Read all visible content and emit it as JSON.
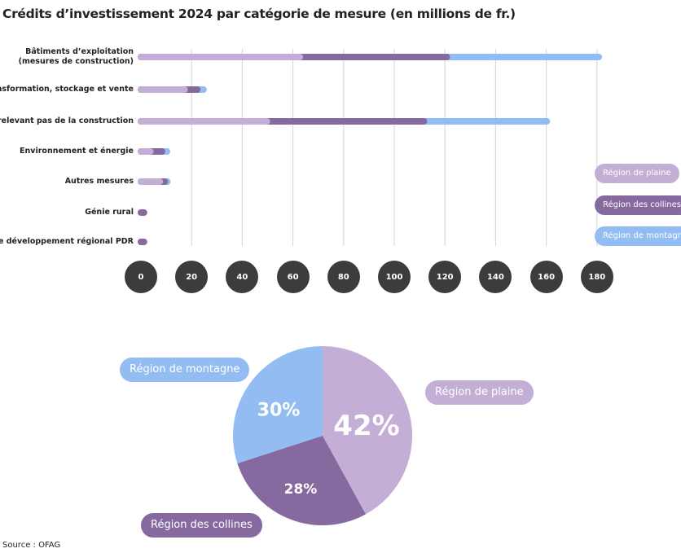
{
  "colors": {
    "plaine": "#c3aed6",
    "collines": "#85699f",
    "montagne": "#93bdf2",
    "tick_bg": "#3c3c3e",
    "grid": "#d4d4d8"
  },
  "chart_data": [
    {
      "type": "bar",
      "orientation": "horizontal",
      "stacked": true,
      "title": "Crédits d’investissement 2024 par catégorie de mesure (en millions de fr.)",
      "categories": [
        "Bâtiments d’exploitation (mesures de construction)",
        "Transformation, stockage et vente",
        "Mesures ne relevant pas de la construction",
        "Environnement et énergie",
        "Autres mesures",
        "Génie rural",
        "Projets de développement régional PDR"
      ],
      "category_lines": [
        [
          "Bâtiments d’exploitation",
          "(mesures de construction)"
        ],
        [
          "Transformation, stockage et vente"
        ],
        [
          "Mesures ne relevant pas de la construction"
        ],
        [
          "Environnement et énergie"
        ],
        [
          "Autres mesures"
        ],
        [
          "Génie rural"
        ],
        [
          "Projets de développement régional PDR"
        ]
      ],
      "series": [
        {
          "name": "Région de plaine",
          "color": "#c3aed6",
          "values": [
            64,
            18.5,
            51,
            5,
            8.7,
            0,
            0
          ]
        },
        {
          "name": "Région des collines",
          "color": "#85699f",
          "values": [
            58,
            5,
            62,
            4.6,
            2,
            2.5,
            2.5
          ]
        },
        {
          "name": "Région de montagne",
          "color": "#93bdf2",
          "values": [
            60,
            2.5,
            48.5,
            2,
            1,
            0,
            0
          ]
        }
      ],
      "xlim": [
        0,
        180
      ],
      "xticks": [
        "0",
        "20",
        "40",
        "60",
        "80",
        "100",
        "120",
        "140",
        "160",
        "180"
      ],
      "grid": true,
      "legend_position": "right"
    },
    {
      "type": "pie",
      "slices": [
        {
          "name": "Région de plaine",
          "value": 42,
          "label": "42%",
          "color": "#c3aed6"
        },
        {
          "name": "Région des collines",
          "value": 28,
          "label": "28%",
          "color": "#85699f"
        },
        {
          "name": "Région de montagne",
          "value": 30,
          "label": "30%",
          "color": "#93bdf2"
        }
      ]
    }
  ],
  "source": "Source : OFAG"
}
